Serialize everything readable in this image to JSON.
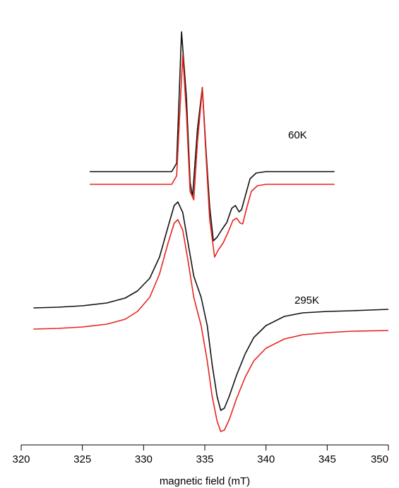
{
  "chart_data": {
    "type": "line",
    "xlabel": "magnetic field (mT)",
    "ylabel": "",
    "xlim": [
      320,
      350
    ],
    "x_ticks": [
      320,
      325,
      330,
      335,
      340,
      345,
      350
    ],
    "y_axis": "none (arbitrary intensity, traces vertically offset)",
    "grid": false,
    "legend": "none",
    "colors": {
      "experimental": "#111111",
      "simulated": "#e8231c"
    },
    "trace_labels": [
      {
        "text": "60K"
      },
      {
        "text": "295K"
      }
    ],
    "series": [
      {
        "group": "60K",
        "kind": "experimental",
        "color": "#111111",
        "offset": 1.93,
        "points": [
          [
            325.6,
            0
          ],
          [
            332.3,
            0
          ],
          [
            332.7,
            0.12
          ],
          [
            333.1,
            1.98
          ],
          [
            333.5,
            1.05
          ],
          [
            333.8,
            -0.15
          ],
          [
            334.0,
            -0.36
          ],
          [
            334.4,
            0.6
          ],
          [
            334.8,
            1.19
          ],
          [
            335.1,
            0.3
          ],
          [
            335.4,
            -0.5
          ],
          [
            335.7,
            -0.98
          ],
          [
            336.0,
            -0.93
          ],
          [
            336.4,
            -0.82
          ],
          [
            336.8,
            -0.72
          ],
          [
            337.2,
            -0.52
          ],
          [
            337.5,
            -0.48
          ],
          [
            337.8,
            -0.57
          ],
          [
            338.0,
            -0.54
          ],
          [
            338.3,
            -0.35
          ],
          [
            338.7,
            -0.1
          ],
          [
            339.2,
            -0.02
          ],
          [
            340,
            0
          ],
          [
            345.6,
            0
          ]
        ]
      },
      {
        "group": "60K",
        "kind": "simulated",
        "color": "#e8231c",
        "offset": 1.75,
        "points": [
          [
            325.6,
            0
          ],
          [
            332.3,
            0
          ],
          [
            332.7,
            0.12
          ],
          [
            333.2,
            1.83
          ],
          [
            333.5,
            1.0
          ],
          [
            333.8,
            -0.1
          ],
          [
            334.1,
            -0.22
          ],
          [
            334.4,
            0.6
          ],
          [
            334.8,
            1.36
          ],
          [
            335.1,
            0.4
          ],
          [
            335.4,
            -0.5
          ],
          [
            335.8,
            -1.03
          ],
          [
            336.1,
            -0.93
          ],
          [
            336.5,
            -0.83
          ],
          [
            336.9,
            -0.68
          ],
          [
            337.3,
            -0.51
          ],
          [
            337.6,
            -0.48
          ],
          [
            337.9,
            -0.55
          ],
          [
            338.1,
            -0.56
          ],
          [
            338.4,
            -0.35
          ],
          [
            338.8,
            -0.1
          ],
          [
            339.3,
            -0.02
          ],
          [
            340,
            0
          ],
          [
            345.6,
            0
          ]
        ]
      },
      {
        "group": "295K",
        "kind": "experimental",
        "color": "#111111",
        "offset": 0,
        "points": [
          [
            321,
            0
          ],
          [
            323,
            0.01
          ],
          [
            325,
            0.03
          ],
          [
            327,
            0.07
          ],
          [
            328.5,
            0.14
          ],
          [
            329.5,
            0.24
          ],
          [
            330.5,
            0.42
          ],
          [
            331.3,
            0.72
          ],
          [
            332,
            1.15
          ],
          [
            332.5,
            1.45
          ],
          [
            332.8,
            1.5
          ],
          [
            333.2,
            1.35
          ],
          [
            333.6,
            0.95
          ],
          [
            334.1,
            0.45
          ],
          [
            334.7,
            0.15
          ],
          [
            335.2,
            -0.25
          ],
          [
            335.6,
            -0.8
          ],
          [
            336,
            -1.25
          ],
          [
            336.3,
            -1.45
          ],
          [
            336.6,
            -1.42
          ],
          [
            337,
            -1.25
          ],
          [
            337.6,
            -0.95
          ],
          [
            338.3,
            -0.65
          ],
          [
            339,
            -0.42
          ],
          [
            340,
            -0.25
          ],
          [
            341.5,
            -0.12
          ],
          [
            343,
            -0.07
          ],
          [
            345,
            -0.05
          ],
          [
            347,
            -0.04
          ],
          [
            350,
            -0.02
          ]
        ]
      },
      {
        "group": "295K",
        "kind": "simulated",
        "color": "#e8231c",
        "offset": -0.3,
        "points": [
          [
            321,
            0
          ],
          [
            323,
            0.01
          ],
          [
            325,
            0.03
          ],
          [
            327,
            0.07
          ],
          [
            328.5,
            0.14
          ],
          [
            329.5,
            0.25
          ],
          [
            330.5,
            0.45
          ],
          [
            331.3,
            0.78
          ],
          [
            332,
            1.22
          ],
          [
            332.5,
            1.5
          ],
          [
            332.8,
            1.55
          ],
          [
            333.2,
            1.4
          ],
          [
            333.6,
            1.0
          ],
          [
            334.1,
            0.45
          ],
          [
            334.7,
            0.05
          ],
          [
            335.2,
            -0.45
          ],
          [
            335.6,
            -0.95
          ],
          [
            336,
            -1.3
          ],
          [
            336.3,
            -1.45
          ],
          [
            336.6,
            -1.43
          ],
          [
            337,
            -1.28
          ],
          [
            337.6,
            -0.98
          ],
          [
            338.3,
            -0.68
          ],
          [
            339,
            -0.45
          ],
          [
            340,
            -0.27
          ],
          [
            341.5,
            -0.14
          ],
          [
            343,
            -0.08
          ],
          [
            345,
            -0.05
          ],
          [
            347,
            -0.03
          ],
          [
            350,
            -0.02
          ]
        ]
      }
    ]
  }
}
